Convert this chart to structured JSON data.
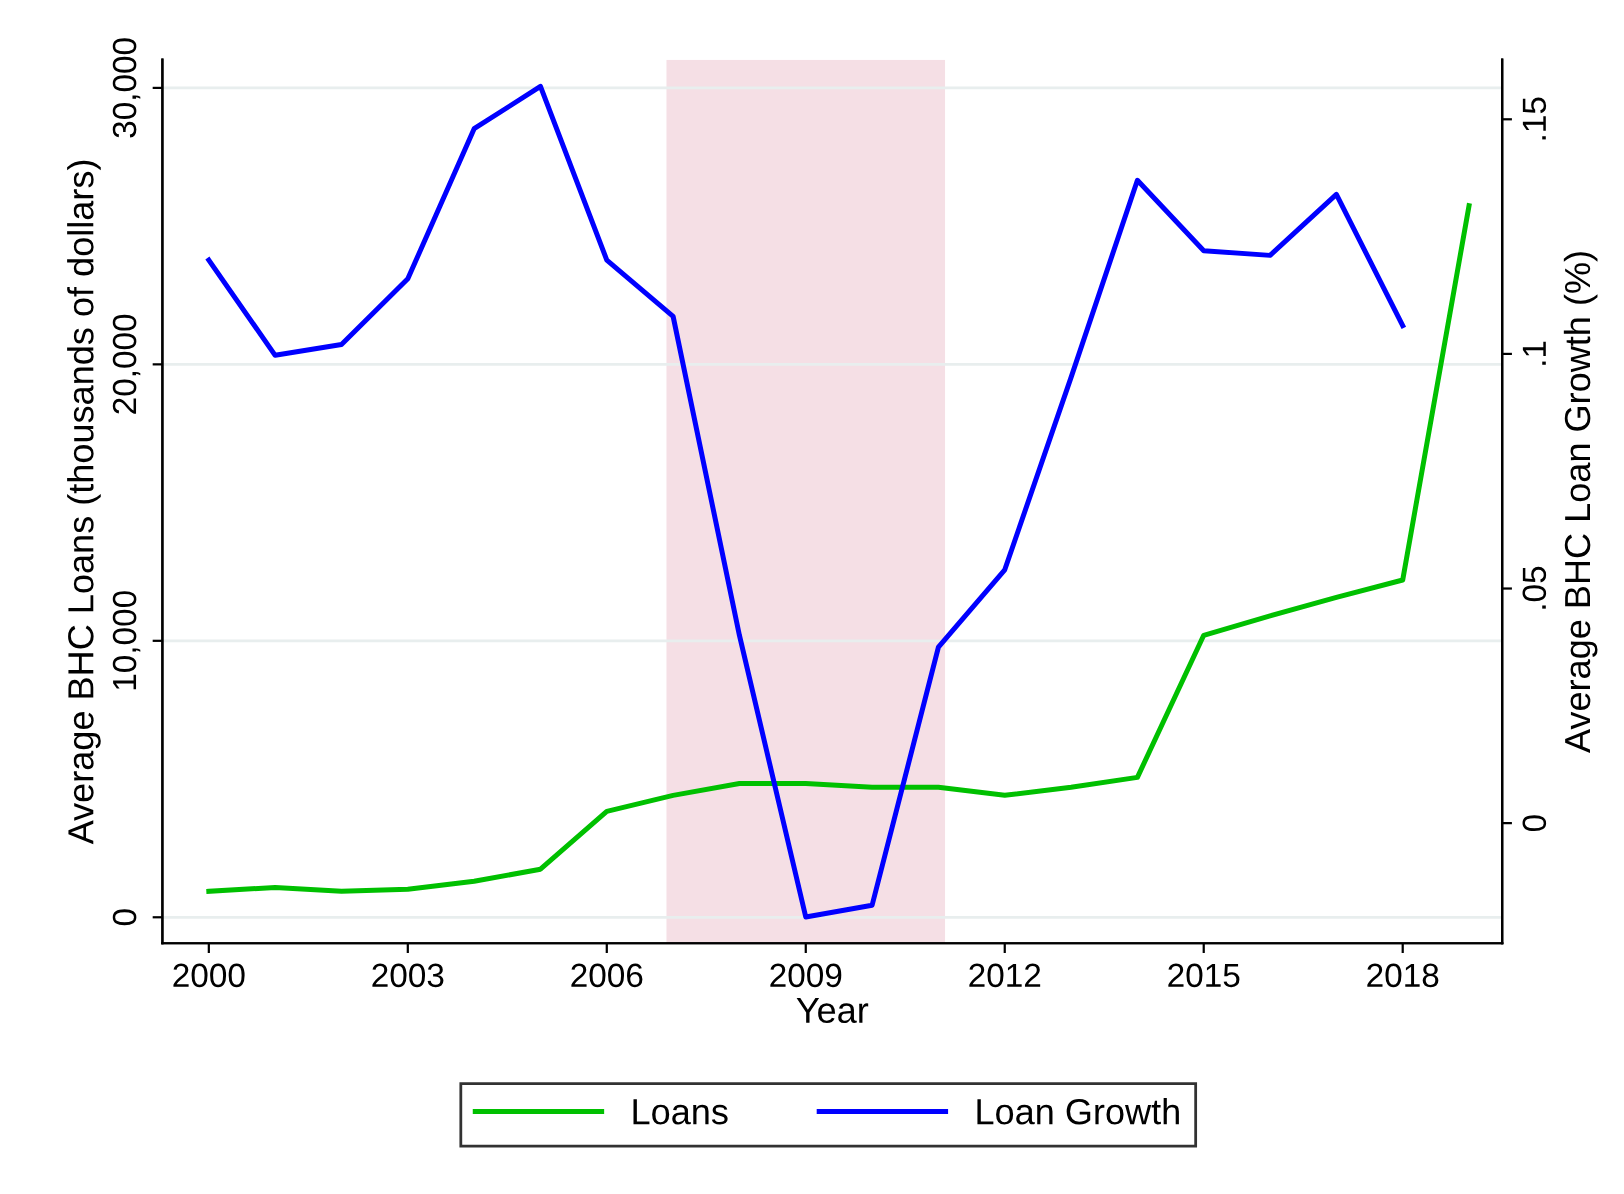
{
  "chart_data": {
    "type": "line",
    "xlabel": "Year",
    "ylabel": "Average BHC Loans (thousands of dollars)",
    "y2label": "Average BHC Loan Growth (%)",
    "series": [
      {
        "name": "Loans",
        "color": "#00c000",
        "x": [
          2000,
          2001,
          2002,
          2003,
          2004,
          2005,
          2006,
          2007,
          2008,
          2009,
          2010,
          2011,
          2012,
          2013,
          2014,
          2015,
          2016,
          2017,
          2018,
          2019
        ],
        "values": [
          940,
          1080,
          940,
          1010,
          1300,
          1740,
          3830,
          4410,
          4840,
          4840,
          4700,
          4700,
          4410,
          4700,
          5060,
          10200,
          10900,
          11570,
          12200,
          25740
        ]
      },
      {
        "name": "Loan Growth",
        "color": "#0000ff",
        "axis": "y2",
        "x": [
          2000,
          2001,
          2002,
          2003,
          2004,
          2005,
          2006,
          2007,
          2008,
          2009,
          2010,
          2011,
          2012,
          2013,
          2014,
          2015,
          2016,
          2017,
          2018
        ],
        "values": [
          0.12,
          0.0997,
          0.102,
          0.116,
          0.148,
          0.157,
          0.12,
          0.108,
          0.04,
          -0.02,
          -0.0175,
          0.0375,
          0.054,
          0.095,
          0.137,
          0.122,
          0.121,
          0.134,
          0.106
        ]
      }
    ],
    "xlim": [
      1999.3,
      2019.5
    ],
    "xticks": [
      2000,
      2003,
      2006,
      2009,
      2012,
      2015,
      2018
    ],
    "ylim": [
      -940,
      31020
    ],
    "yticks": [
      0,
      {
        "value": 10000,
        "label": "10,000"
      },
      {
        "value": 20000,
        "label": "20,000"
      },
      {
        "value": 30000,
        "label": "30,000"
      }
    ],
    "y2lim": [
      -0.0256,
      0.1627
    ],
    "y2ticks": [
      0,
      {
        "value": 0.05,
        "label": ".05"
      },
      {
        "value": 0.1,
        "label": ".1"
      },
      {
        "value": 0.15,
        "label": ".15"
      }
    ],
    "bands": [
      {
        "axis": "x",
        "from": 2006.9,
        "to": 2011.1,
        "color": "#f5dfe5"
      }
    ],
    "grid": "y",
    "legend": "bottom",
    "marker": "none",
    "line_style": "solid"
  }
}
